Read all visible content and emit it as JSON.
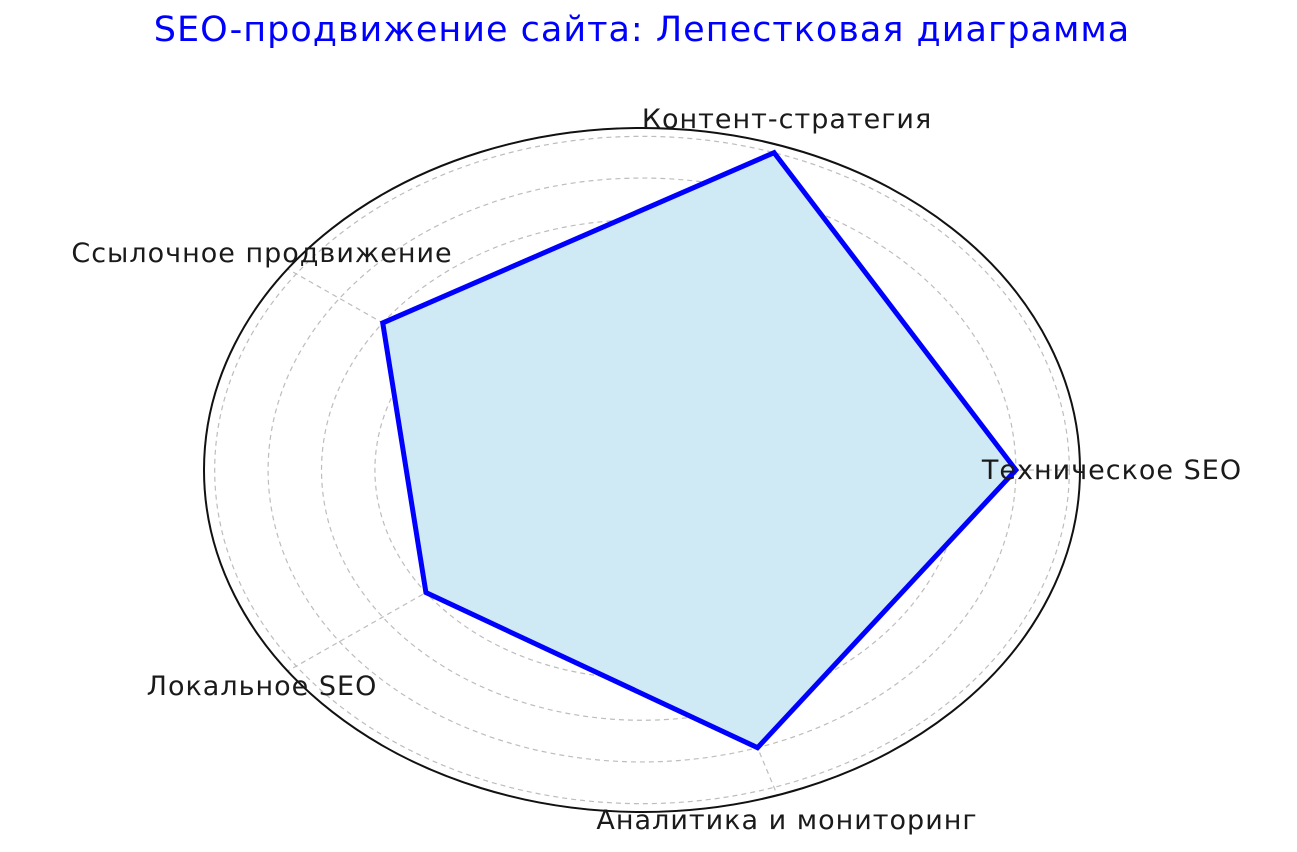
{
  "chart_data": {
    "type": "radar",
    "title": "SEO-продвижение сайта: Лепестковая диаграмма",
    "categories": [
      "Техническое SEO",
      "Контент-стратегия",
      "Ссылочное продвижение",
      "Локальное SEO",
      "Аналитика и мониторинг"
    ],
    "series": [
      {
        "values": [
          7,
          8,
          6,
          5,
          7
        ]
      }
    ],
    "rlim": [
      0,
      8.2
    ],
    "rgrid": [
      1,
      2,
      3,
      4,
      5,
      6,
      7,
      8
    ],
    "radial_tick_labels_shown": false,
    "grid": true,
    "grid_style": "dashed",
    "colors": {
      "title": "#0000ff",
      "line": "#0000ff",
      "fill": "#cfe9f5",
      "grid": "#bdbdbd",
      "spine": "#111111",
      "labels": "#1a1a1a"
    }
  }
}
